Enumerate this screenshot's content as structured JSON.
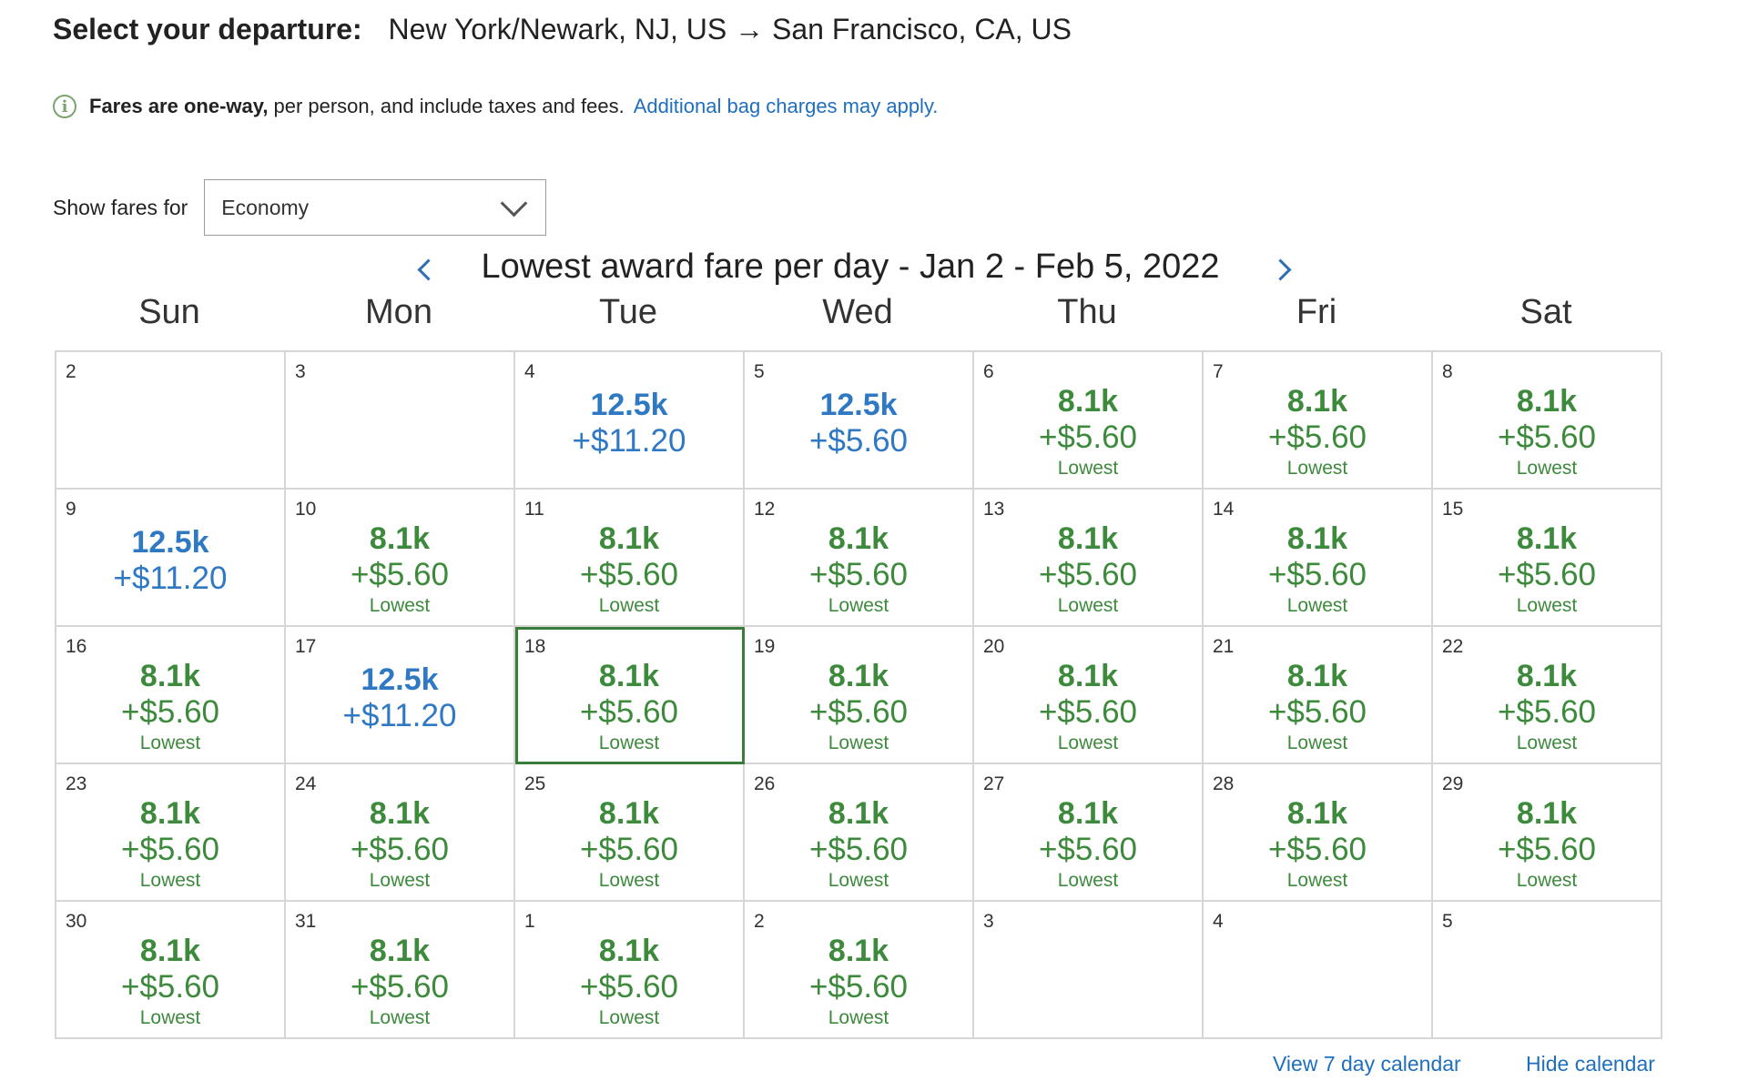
{
  "header": {
    "label": "Select your departure:",
    "route": "New York/Newark, NJ, US → San Francisco, CA, US"
  },
  "notice": {
    "bold": "Fares are one-way,",
    "text": "per person, and include taxes and fees.",
    "link": "Additional bag charges may apply."
  },
  "fares_filter": {
    "label": "Show fares for",
    "selected": "Economy"
  },
  "calendar": {
    "title": "Lowest award fare per day - Jan 2 - Feb 5, 2022",
    "weekdays": [
      "Sun",
      "Mon",
      "Tue",
      "Wed",
      "Thu",
      "Fri",
      "Sat"
    ],
    "cells": [
      {
        "day": "2"
      },
      {
        "day": "3"
      },
      {
        "day": "4",
        "miles": "12.5k",
        "cash": "+$11.20",
        "color": "#2f78c4"
      },
      {
        "day": "5",
        "miles": "12.5k",
        "cash": "+$5.60",
        "color": "#2f78c4"
      },
      {
        "day": "6",
        "miles": "8.1k",
        "cash": "+$5.60",
        "tag": "Lowest",
        "color": "#3d8a3d"
      },
      {
        "day": "7",
        "miles": "8.1k",
        "cash": "+$5.60",
        "tag": "Lowest",
        "color": "#3d8a3d"
      },
      {
        "day": "8",
        "miles": "8.1k",
        "cash": "+$5.60",
        "tag": "Lowest",
        "color": "#3d8a3d"
      },
      {
        "day": "9",
        "miles": "12.5k",
        "cash": "+$11.20",
        "color": "#2f78c4"
      },
      {
        "day": "10",
        "miles": "8.1k",
        "cash": "+$5.60",
        "tag": "Lowest",
        "color": "#3d8a3d"
      },
      {
        "day": "11",
        "miles": "8.1k",
        "cash": "+$5.60",
        "tag": "Lowest",
        "color": "#3d8a3d"
      },
      {
        "day": "12",
        "miles": "8.1k",
        "cash": "+$5.60",
        "tag": "Lowest",
        "color": "#3d8a3d"
      },
      {
        "day": "13",
        "miles": "8.1k",
        "cash": "+$5.60",
        "tag": "Lowest",
        "color": "#3d8a3d"
      },
      {
        "day": "14",
        "miles": "8.1k",
        "cash": "+$5.60",
        "tag": "Lowest",
        "color": "#3d8a3d"
      },
      {
        "day": "15",
        "miles": "8.1k",
        "cash": "+$5.60",
        "tag": "Lowest",
        "color": "#3d8a3d"
      },
      {
        "day": "16",
        "miles": "8.1k",
        "cash": "+$5.60",
        "tag": "Lowest",
        "color": "#3d8a3d"
      },
      {
        "day": "17",
        "miles": "12.5k",
        "cash": "+$11.20",
        "color": "#2f78c4"
      },
      {
        "day": "18",
        "miles": "8.1k",
        "cash": "+$5.60",
        "tag": "Lowest",
        "color": "#3d8a3d",
        "selected": true
      },
      {
        "day": "19",
        "miles": "8.1k",
        "cash": "+$5.60",
        "tag": "Lowest",
        "color": "#3d8a3d"
      },
      {
        "day": "20",
        "miles": "8.1k",
        "cash": "+$5.60",
        "tag": "Lowest",
        "color": "#3d8a3d"
      },
      {
        "day": "21",
        "miles": "8.1k",
        "cash": "+$5.60",
        "tag": "Lowest",
        "color": "#3d8a3d"
      },
      {
        "day": "22",
        "miles": "8.1k",
        "cash": "+$5.60",
        "tag": "Lowest",
        "color": "#3d8a3d"
      },
      {
        "day": "23",
        "miles": "8.1k",
        "cash": "+$5.60",
        "tag": "Lowest",
        "color": "#3d8a3d"
      },
      {
        "day": "24",
        "miles": "8.1k",
        "cash": "+$5.60",
        "tag": "Lowest",
        "color": "#3d8a3d"
      },
      {
        "day": "25",
        "miles": "8.1k",
        "cash": "+$5.60",
        "tag": "Lowest",
        "color": "#3d8a3d"
      },
      {
        "day": "26",
        "miles": "8.1k",
        "cash": "+$5.60",
        "tag": "Lowest",
        "color": "#3d8a3d"
      },
      {
        "day": "27",
        "miles": "8.1k",
        "cash": "+$5.60",
        "tag": "Lowest",
        "color": "#3d8a3d"
      },
      {
        "day": "28",
        "miles": "8.1k",
        "cash": "+$5.60",
        "tag": "Lowest",
        "color": "#3d8a3d"
      },
      {
        "day": "29",
        "miles": "8.1k",
        "cash": "+$5.60",
        "tag": "Lowest",
        "color": "#3d8a3d"
      },
      {
        "day": "30",
        "miles": "8.1k",
        "cash": "+$5.60",
        "tag": "Lowest",
        "color": "#3d8a3d"
      },
      {
        "day": "31",
        "miles": "8.1k",
        "cash": "+$5.60",
        "tag": "Lowest",
        "color": "#3d8a3d"
      },
      {
        "day": "1",
        "miles": "8.1k",
        "cash": "+$5.60",
        "tag": "Lowest",
        "color": "#3d8a3d"
      },
      {
        "day": "2",
        "miles": "8.1k",
        "cash": "+$5.60",
        "tag": "Lowest",
        "color": "#3d8a3d"
      },
      {
        "day": "3"
      },
      {
        "day": "4"
      },
      {
        "day": "5"
      }
    ]
  },
  "links": {
    "view7": "View 7 day calendar",
    "hide": "Hide calendar"
  },
  "icons": {
    "info": "info-circle-icon",
    "prev": "chevron-left-icon",
    "next": "chevron-right-icon",
    "dropdown": "chevron-down-icon"
  }
}
